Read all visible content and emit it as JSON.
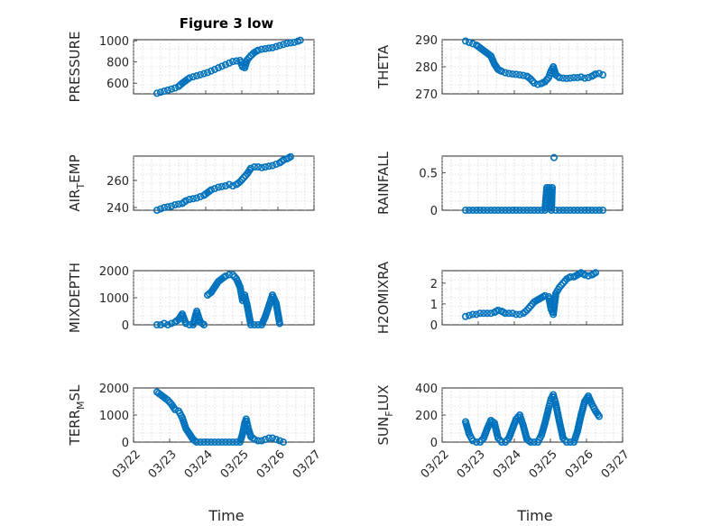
{
  "figure_title": "Figure 3 low",
  "chart_data": [
    {
      "type": "scatter",
      "ylabel": "PRESSURE",
      "ylabel_sub": "",
      "ylabel_tail": "",
      "yticks": [
        600,
        800,
        1000
      ],
      "ylim": [
        500,
        1010
      ],
      "xlim": [
        0,
        5
      ],
      "xticks": [
        "03/22",
        "03/23",
        "03/24",
        "03/25",
        "03/26",
        "03/27"
      ],
      "xlabel": "",
      "show_xticklabels": false,
      "grid": true,
      "points": [
        [
          0.65,
          505
        ],
        [
          0.75,
          515
        ],
        [
          0.85,
          525
        ],
        [
          0.95,
          535
        ],
        [
          1.05,
          545
        ],
        [
          1.15,
          555
        ],
        [
          1.25,
          570
        ],
        [
          1.35,
          600
        ],
        [
          1.45,
          625
        ],
        [
          1.55,
          650
        ],
        [
          1.65,
          660
        ],
        [
          1.75,
          670
        ],
        [
          1.85,
          680
        ],
        [
          1.95,
          690
        ],
        [
          2.05,
          700
        ],
        [
          2.15,
          715
        ],
        [
          2.25,
          730
        ],
        [
          2.35,
          745
        ],
        [
          2.45,
          760
        ],
        [
          2.55,
          775
        ],
        [
          2.65,
          790
        ],
        [
          2.75,
          805
        ],
        [
          2.85,
          810
        ],
        [
          2.95,
          815
        ],
        [
          3.02,
          755
        ],
        [
          3.08,
          745
        ],
        [
          3.15,
          820
        ],
        [
          3.25,
          860
        ],
        [
          3.35,
          890
        ],
        [
          3.45,
          910
        ],
        [
          3.55,
          920
        ],
        [
          3.65,
          925
        ],
        [
          3.75,
          930
        ],
        [
          3.85,
          935
        ],
        [
          3.95,
          945
        ],
        [
          4.05,
          955
        ],
        [
          4.15,
          965
        ],
        [
          4.25,
          975
        ],
        [
          4.35,
          980
        ],
        [
          4.45,
          985
        ],
        [
          4.55,
          995
        ],
        [
          4.62,
          1005
        ]
      ]
    },
    {
      "type": "scatter",
      "ylabel": "THETA",
      "ylabel_sub": "",
      "ylabel_tail": "",
      "yticks": [
        270,
        280,
        290
      ],
      "ylim": [
        270,
        290
      ],
      "xlim": [
        0,
        5
      ],
      "xticks": [
        "03/22",
        "03/23",
        "03/24",
        "03/25",
        "03/26",
        "03/27"
      ],
      "xlabel": "",
      "show_xticklabels": false,
      "grid": true,
      "points": [
        [
          0.65,
          289.5
        ],
        [
          0.75,
          289
        ],
        [
          0.85,
          288.5
        ],
        [
          0.95,
          288
        ],
        [
          1.05,
          287
        ],
        [
          1.15,
          286
        ],
        [
          1.25,
          285
        ],
        [
          1.35,
          284
        ],
        [
          1.45,
          281
        ],
        [
          1.55,
          279
        ],
        [
          1.65,
          278.3
        ],
        [
          1.75,
          277.8
        ],
        [
          1.85,
          277.5
        ],
        [
          1.95,
          277.3
        ],
        [
          2.05,
          277.2
        ],
        [
          2.15,
          277.0
        ],
        [
          2.25,
          276.8
        ],
        [
          2.35,
          276.5
        ],
        [
          2.45,
          275.5
        ],
        [
          2.55,
          274
        ],
        [
          2.65,
          273.5
        ],
        [
          2.75,
          273.8
        ],
        [
          2.85,
          274.5
        ],
        [
          2.95,
          276
        ],
        [
          3.02,
          278.5
        ],
        [
          3.08,
          280
        ],
        [
          3.15,
          277
        ],
        [
          3.25,
          276
        ],
        [
          3.35,
          275.8
        ],
        [
          3.45,
          275.7
        ],
        [
          3.55,
          275.8
        ],
        [
          3.65,
          276
        ],
        [
          3.75,
          276
        ],
        [
          3.85,
          276.2
        ],
        [
          3.95,
          275.8
        ],
        [
          4.05,
          276
        ],
        [
          4.15,
          276.5
        ],
        [
          4.25,
          277.3
        ],
        [
          4.35,
          277.5
        ],
        [
          4.45,
          277
        ]
      ]
    },
    {
      "type": "scatter",
      "ylabel": "AIR",
      "ylabel_sub": "T",
      "ylabel_tail": "EMP",
      "yticks": [
        240,
        260
      ],
      "ylim": [
        238,
        278
      ],
      "xlim": [
        0,
        5
      ],
      "xticks": [
        "03/22",
        "03/23",
        "03/24",
        "03/25",
        "03/26",
        "03/27"
      ],
      "xlabel": "",
      "show_xticklabels": false,
      "grid": true,
      "points": [
        [
          0.65,
          238
        ],
        [
          0.75,
          239
        ],
        [
          0.85,
          240
        ],
        [
          0.95,
          240.5
        ],
        [
          1.05,
          241
        ],
        [
          1.15,
          242
        ],
        [
          1.25,
          242.5
        ],
        [
          1.35,
          243
        ],
        [
          1.45,
          245
        ],
        [
          1.55,
          246
        ],
        [
          1.65,
          246.5
        ],
        [
          1.75,
          247
        ],
        [
          1.85,
          248
        ],
        [
          1.95,
          249
        ],
        [
          2.05,
          251
        ],
        [
          2.15,
          253
        ],
        [
          2.25,
          254
        ],
        [
          2.35,
          255
        ],
        [
          2.45,
          255.5
        ],
        [
          2.55,
          256
        ],
        [
          2.65,
          257
        ],
        [
          2.75,
          256
        ],
        [
          2.85,
          257
        ],
        [
          2.95,
          259
        ],
        [
          3.05,
          262
        ],
        [
          3.15,
          265
        ],
        [
          3.25,
          269
        ],
        [
          3.35,
          270
        ],
        [
          3.45,
          270
        ],
        [
          3.55,
          269.5
        ],
        [
          3.65,
          270
        ],
        [
          3.75,
          270.5
        ],
        [
          3.85,
          271
        ],
        [
          3.95,
          272
        ],
        [
          4.05,
          273
        ],
        [
          4.15,
          275
        ],
        [
          4.25,
          276
        ],
        [
          4.35,
          277.5
        ]
      ]
    },
    {
      "type": "scatter",
      "ylabel": "RAINFALL",
      "ylabel_sub": "",
      "ylabel_tail": "",
      "yticks": [
        0,
        0.5
      ],
      "ylim": [
        0,
        0.72
      ],
      "xlim": [
        0,
        5
      ],
      "xticks": [
        "03/22",
        "03/23",
        "03/24",
        "03/25",
        "03/26",
        "03/27"
      ],
      "xlabel": "",
      "show_xticklabels": false,
      "grid": true,
      "points": [
        [
          0.65,
          0
        ],
        [
          0.75,
          0
        ],
        [
          0.85,
          0
        ],
        [
          0.95,
          0
        ],
        [
          1.05,
          0
        ],
        [
          1.15,
          0
        ],
        [
          1.25,
          0
        ],
        [
          1.35,
          0
        ],
        [
          1.45,
          0
        ],
        [
          1.55,
          0
        ],
        [
          1.65,
          0
        ],
        [
          1.75,
          0
        ],
        [
          1.85,
          0
        ],
        [
          1.95,
          0
        ],
        [
          2.05,
          0
        ],
        [
          2.15,
          0
        ],
        [
          2.25,
          0
        ],
        [
          2.35,
          0
        ],
        [
          2.45,
          0
        ],
        [
          2.55,
          0
        ],
        [
          2.65,
          0
        ],
        [
          2.75,
          0
        ],
        [
          2.85,
          0
        ],
        [
          2.9,
          0.3
        ],
        [
          2.97,
          0.3
        ],
        [
          3.03,
          0
        ],
        [
          3.05,
          0.3
        ],
        [
          3.1,
          0.7
        ],
        [
          3.15,
          0
        ],
        [
          3.25,
          0
        ],
        [
          3.35,
          0
        ],
        [
          3.45,
          0
        ],
        [
          3.55,
          0
        ],
        [
          3.65,
          0
        ],
        [
          3.75,
          0
        ],
        [
          3.85,
          0
        ],
        [
          3.95,
          0
        ],
        [
          4.05,
          0
        ],
        [
          4.15,
          0
        ],
        [
          4.25,
          0
        ],
        [
          4.35,
          0
        ],
        [
          4.45,
          0
        ]
      ]
    },
    {
      "type": "scatter",
      "ylabel": "MIXDEPTH",
      "ylabel_sub": "",
      "ylabel_tail": "",
      "yticks": [
        0,
        1000,
        2000
      ],
      "ylim": [
        0,
        2000
      ],
      "xlim": [
        0,
        5
      ],
      "xticks": [
        "03/22",
        "03/23",
        "03/24",
        "03/25",
        "03/26",
        "03/27"
      ],
      "xlabel": "",
      "show_xticklabels": false,
      "grid": true,
      "points": [
        [
          0.65,
          0
        ],
        [
          0.75,
          0
        ],
        [
          0.85,
          50
        ],
        [
          0.95,
          0
        ],
        [
          1.05,
          50
        ],
        [
          1.15,
          100
        ],
        [
          1.25,
          200
        ],
        [
          1.35,
          400
        ],
        [
          1.45,
          50
        ],
        [
          1.55,
          0
        ],
        [
          1.65,
          0
        ],
        [
          1.75,
          500
        ],
        [
          1.85,
          100
        ],
        [
          1.95,
          0
        ],
        [
          2.05,
          1100
        ],
        [
          2.15,
          1200
        ],
        [
          2.25,
          1400
        ],
        [
          2.35,
          1600
        ],
        [
          2.45,
          1700
        ],
        [
          2.55,
          1800
        ],
        [
          2.65,
          1850
        ],
        [
          2.75,
          1850
        ],
        [
          2.85,
          1700
        ],
        [
          2.95,
          1400
        ],
        [
          3.02,
          900
        ],
        [
          3.08,
          1100
        ],
        [
          3.15,
          700
        ],
        [
          3.25,
          0
        ],
        [
          3.35,
          0
        ],
        [
          3.45,
          0
        ],
        [
          3.55,
          0
        ],
        [
          3.65,
          300
        ],
        [
          3.75,
          700
        ],
        [
          3.85,
          1100
        ],
        [
          3.95,
          800
        ],
        [
          4.05,
          50
        ]
      ]
    },
    {
      "type": "scatter",
      "ylabel": "H2OMIXRA",
      "ylabel_sub": "",
      "ylabel_tail": "",
      "yticks": [
        0,
        1,
        2
      ],
      "ylim": [
        0,
        2.6
      ],
      "xlim": [
        0,
        5
      ],
      "xticks": [
        "03/22",
        "03/23",
        "03/24",
        "03/25",
        "03/26",
        "03/27"
      ],
      "xlabel": "",
      "show_xticklabels": false,
      "grid": true,
      "points": [
        [
          0.65,
          0.4
        ],
        [
          0.75,
          0.45
        ],
        [
          0.85,
          0.5
        ],
        [
          0.95,
          0.5
        ],
        [
          1.05,
          0.55
        ],
        [
          1.15,
          0.55
        ],
        [
          1.25,
          0.55
        ],
        [
          1.35,
          0.55
        ],
        [
          1.45,
          0.6
        ],
        [
          1.55,
          0.7
        ],
        [
          1.65,
          0.65
        ],
        [
          1.75,
          0.55
        ],
        [
          1.85,
          0.55
        ],
        [
          1.95,
          0.55
        ],
        [
          2.05,
          0.5
        ],
        [
          2.15,
          0.5
        ],
        [
          2.25,
          0.55
        ],
        [
          2.35,
          0.7
        ],
        [
          2.45,
          0.9
        ],
        [
          2.55,
          1.1
        ],
        [
          2.65,
          1.2
        ],
        [
          2.75,
          1.3
        ],
        [
          2.85,
          1.4
        ],
        [
          2.95,
          1.35
        ],
        [
          3.02,
          0.75
        ],
        [
          3.08,
          0.5
        ],
        [
          3.15,
          1.5
        ],
        [
          3.25,
          1.8
        ],
        [
          3.35,
          2.0
        ],
        [
          3.45,
          2.2
        ],
        [
          3.55,
          2.3
        ],
        [
          3.65,
          2.3
        ],
        [
          3.75,
          2.4
        ],
        [
          3.85,
          2.5
        ],
        [
          3.95,
          2.4
        ],
        [
          4.05,
          2.35
        ],
        [
          4.15,
          2.4
        ],
        [
          4.25,
          2.5
        ]
      ]
    },
    {
      "type": "scatter",
      "ylabel": "TERR",
      "ylabel_sub": "M",
      "ylabel_tail": "SL",
      "yticks": [
        0,
        1000,
        2000
      ],
      "ylim": [
        0,
        2000
      ],
      "xlim": [
        0,
        5
      ],
      "xticks": [
        "03/22",
        "03/23",
        "03/24",
        "03/25",
        "03/26",
        "03/27"
      ],
      "xlabel": "Time",
      "show_xticklabels": true,
      "grid": true,
      "points": [
        [
          0.65,
          1850
        ],
        [
          0.75,
          1750
        ],
        [
          0.85,
          1650
        ],
        [
          0.95,
          1550
        ],
        [
          1.05,
          1400
        ],
        [
          1.15,
          1200
        ],
        [
          1.25,
          1150
        ],
        [
          1.35,
          900
        ],
        [
          1.45,
          500
        ],
        [
          1.55,
          300
        ],
        [
          1.65,
          100
        ],
        [
          1.75,
          0
        ],
        [
          1.85,
          0
        ],
        [
          1.95,
          0
        ],
        [
          2.05,
          0
        ],
        [
          2.15,
          0
        ],
        [
          2.25,
          0
        ],
        [
          2.35,
          0
        ],
        [
          2.45,
          0
        ],
        [
          2.55,
          0
        ],
        [
          2.65,
          0
        ],
        [
          2.75,
          0
        ],
        [
          2.85,
          0
        ],
        [
          2.95,
          0
        ],
        [
          3.02,
          300
        ],
        [
          3.08,
          700
        ],
        [
          3.12,
          850
        ],
        [
          3.18,
          500
        ],
        [
          3.25,
          200
        ],
        [
          3.35,
          100
        ],
        [
          3.45,
          50
        ],
        [
          3.55,
          50
        ],
        [
          3.65,
          100
        ],
        [
          3.75,
          150
        ],
        [
          3.85,
          150
        ],
        [
          3.95,
          100
        ],
        [
          4.05,
          50
        ],
        [
          4.15,
          0
        ]
      ]
    },
    {
      "type": "scatter",
      "ylabel": "SUN",
      "ylabel_sub": "F",
      "ylabel_tail": "LUX",
      "yticks": [
        0,
        200,
        400
      ],
      "ylim": [
        0,
        400
      ],
      "xlim": [
        0,
        5
      ],
      "xticks": [
        "03/22",
        "03/23",
        "03/24",
        "03/25",
        "03/26",
        "03/27"
      ],
      "xlabel": "Time",
      "show_xticklabels": true,
      "grid": true,
      "points": [
        [
          0.65,
          150
        ],
        [
          0.75,
          60
        ],
        [
          0.85,
          10
        ],
        [
          0.95,
          0
        ],
        [
          1.05,
          0
        ],
        [
          1.15,
          30
        ],
        [
          1.25,
          100
        ],
        [
          1.35,
          160
        ],
        [
          1.45,
          140
        ],
        [
          1.55,
          30
        ],
        [
          1.65,
          0
        ],
        [
          1.75,
          0
        ],
        [
          1.85,
          30
        ],
        [
          1.95,
          100
        ],
        [
          2.05,
          170
        ],
        [
          2.15,
          200
        ],
        [
          2.25,
          120
        ],
        [
          2.35,
          20
        ],
        [
          2.45,
          0
        ],
        [
          2.55,
          0
        ],
        [
          2.65,
          0
        ],
        [
          2.75,
          50
        ],
        [
          2.85,
          140
        ],
        [
          2.95,
          250
        ],
        [
          3.02,
          320
        ],
        [
          3.08,
          350
        ],
        [
          3.15,
          280
        ],
        [
          3.25,
          150
        ],
        [
          3.35,
          30
        ],
        [
          3.45,
          0
        ],
        [
          3.55,
          0
        ],
        [
          3.65,
          0
        ],
        [
          3.75,
          80
        ],
        [
          3.85,
          200
        ],
        [
          3.95,
          300
        ],
        [
          4.05,
          340
        ],
        [
          4.15,
          280
        ],
        [
          4.25,
          230
        ],
        [
          4.35,
          190
        ]
      ]
    }
  ]
}
